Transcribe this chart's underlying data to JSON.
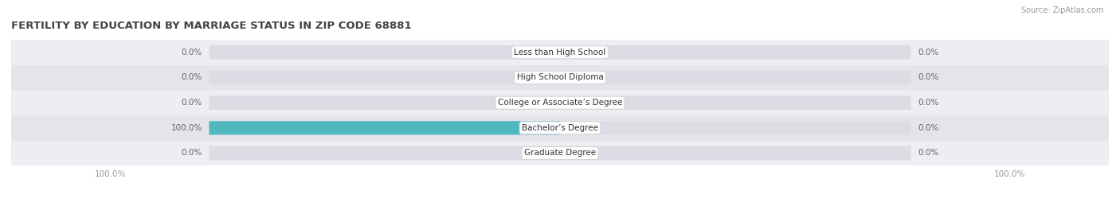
{
  "title": "FERTILITY BY EDUCATION BY MARRIAGE STATUS IN ZIP CODE 68881",
  "source": "Source: ZipAtlas.com",
  "categories": [
    "Less than High School",
    "High School Diploma",
    "College or Associate’s Degree",
    "Bachelor’s Degree",
    "Graduate Degree"
  ],
  "married_values": [
    0.0,
    0.0,
    0.0,
    100.0,
    0.0
  ],
  "unmarried_values": [
    0.0,
    0.0,
    0.0,
    0.0,
    0.0
  ],
  "married_color": "#52b8bf",
  "unmarried_color": "#f4a4b8",
  "track_color": "#dcdce4",
  "row_bg_even": "#eeeef2",
  "row_bg_odd": "#e4e4ea",
  "title_color": "#444444",
  "value_color": "#666666",
  "axis_tick_color": "#999999",
  "max_value": 100.0,
  "figsize": [
    14.06,
    2.69
  ],
  "dpi": 100
}
